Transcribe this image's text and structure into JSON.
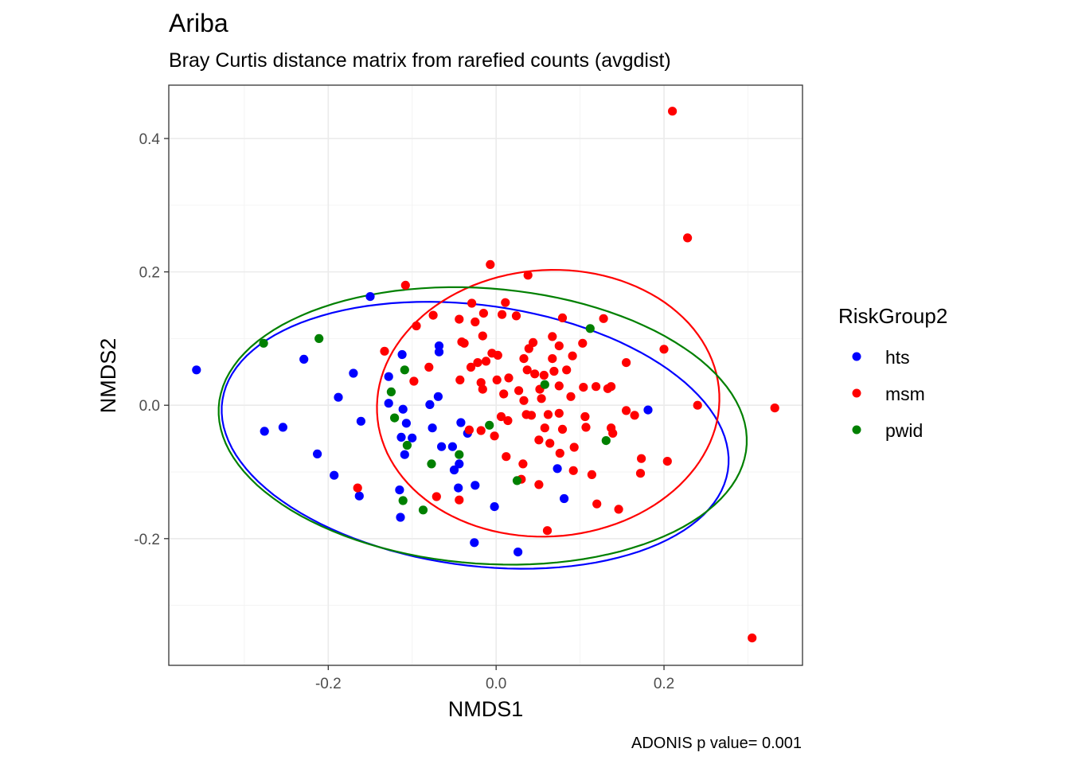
{
  "chart_data": {
    "type": "scatter",
    "title": "Ariba",
    "subtitle": "Bray Curtis distance matrix from rarefied counts (avgdist)",
    "xlabel": "NMDS1",
    "ylabel": "NMDS2",
    "caption": "ADONIS p value= 0.001",
    "xlim": [
      -0.39,
      0.365
    ],
    "ylim": [
      -0.39,
      0.48
    ],
    "x_ticks": [
      -0.2,
      0.0,
      0.2
    ],
    "x_tick_labels": [
      "-0.2",
      "0.0",
      "0.2"
    ],
    "y_ticks": [
      -0.2,
      0.0,
      0.2,
      0.4
    ],
    "y_tick_labels": [
      "-0.2",
      "0.0",
      "0.2",
      "0.4"
    ],
    "grid": true,
    "legend": {
      "title": "RiskGroup2",
      "placement": "right",
      "entries": [
        {
          "label": "hts",
          "color": "#0000ff"
        },
        {
          "label": "msm",
          "color": "#ff0000"
        },
        {
          "label": "pwid",
          "color": "#008000"
        }
      ]
    },
    "series": [
      {
        "name": "hts",
        "color": "#0000ff",
        "points": [
          [
            -0.357,
            0.053
          ],
          [
            -0.276,
            -0.039
          ],
          [
            -0.254,
            -0.033
          ],
          [
            -0.229,
            0.069
          ],
          [
            -0.213,
            -0.073
          ],
          [
            -0.193,
            -0.105
          ],
          [
            -0.188,
            0.012
          ],
          [
            -0.17,
            0.048
          ],
          [
            -0.163,
            -0.136
          ],
          [
            -0.161,
            -0.024
          ],
          [
            -0.15,
            0.163
          ],
          [
            -0.128,
            0.043
          ],
          [
            -0.128,
            0.003
          ],
          [
            -0.115,
            -0.127
          ],
          [
            -0.114,
            -0.168
          ],
          [
            -0.113,
            -0.048
          ],
          [
            -0.112,
            0.076
          ],
          [
            -0.111,
            -0.006
          ],
          [
            -0.109,
            -0.074
          ],
          [
            -0.107,
            -0.027
          ],
          [
            -0.1,
            -0.049
          ],
          [
            -0.079,
            0.001
          ],
          [
            -0.076,
            -0.034
          ],
          [
            -0.069,
            0.013
          ],
          [
            -0.068,
            0.089
          ],
          [
            -0.068,
            0.08
          ],
          [
            -0.065,
            -0.062
          ],
          [
            -0.052,
            -0.062
          ],
          [
            -0.05,
            -0.097
          ],
          [
            -0.045,
            -0.124
          ],
          [
            -0.044,
            -0.088
          ],
          [
            -0.042,
            -0.026
          ],
          [
            -0.034,
            -0.042
          ],
          [
            -0.026,
            -0.206
          ],
          [
            -0.025,
            -0.12
          ],
          [
            -0.002,
            -0.152
          ],
          [
            0.026,
            -0.22
          ],
          [
            0.073,
            -0.095
          ],
          [
            0.081,
            -0.14
          ],
          [
            0.181,
            -0.007
          ]
        ]
      },
      {
        "name": "msm",
        "color": "#ff0000",
        "points": [
          [
            0.21,
            0.441
          ],
          [
            0.228,
            0.251
          ],
          [
            -0.007,
            0.211
          ],
          [
            0.038,
            0.195
          ],
          [
            -0.108,
            0.18
          ],
          [
            -0.029,
            0.153
          ],
          [
            0.011,
            0.154
          ],
          [
            -0.075,
            0.135
          ],
          [
            -0.015,
            0.138
          ],
          [
            0.007,
            0.136
          ],
          [
            0.024,
            0.134
          ],
          [
            -0.044,
            0.129
          ],
          [
            -0.025,
            0.125
          ],
          [
            -0.095,
            0.119
          ],
          [
            0.079,
            0.131
          ],
          [
            0.128,
            0.13
          ],
          [
            0.067,
            0.103
          ],
          [
            -0.041,
            0.095
          ],
          [
            -0.016,
            0.104
          ],
          [
            -0.038,
            0.093
          ],
          [
            0.039,
            0.085
          ],
          [
            0.044,
            0.094
          ],
          [
            0.075,
            0.089
          ],
          [
            0.103,
            0.093
          ],
          [
            0.2,
            0.084
          ],
          [
            -0.133,
            0.081
          ],
          [
            -0.005,
            0.078
          ],
          [
            0.002,
            0.075
          ],
          [
            0.033,
            0.07
          ],
          [
            0.067,
            0.07
          ],
          [
            0.091,
            0.074
          ],
          [
            -0.03,
            0.057
          ],
          [
            -0.022,
            0.064
          ],
          [
            -0.012,
            0.066
          ],
          [
            0.037,
            0.053
          ],
          [
            0.046,
            0.047
          ],
          [
            0.069,
            0.051
          ],
          [
            0.084,
            0.053
          ],
          [
            0.155,
            0.064
          ],
          [
            -0.08,
            0.057
          ],
          [
            -0.098,
            0.036
          ],
          [
            -0.043,
            0.038
          ],
          [
            -0.018,
            0.034
          ],
          [
            0.001,
            0.038
          ],
          [
            0.015,
            0.041
          ],
          [
            0.057,
            0.045
          ],
          [
            0.009,
            0.017
          ],
          [
            -0.016,
            0.024
          ],
          [
            0.027,
            0.022
          ],
          [
            0.052,
            0.024
          ],
          [
            0.075,
            0.029
          ],
          [
            0.104,
            0.027
          ],
          [
            0.119,
            0.028
          ],
          [
            0.133,
            0.025
          ],
          [
            0.137,
            0.028
          ],
          [
            0.033,
            0.007
          ],
          [
            0.054,
            0.01
          ],
          [
            0.089,
            0.013
          ],
          [
            0.24,
            0.0
          ],
          [
            0.332,
            -0.004
          ],
          [
            0.006,
            -0.017
          ],
          [
            0.036,
            -0.014
          ],
          [
            0.042,
            -0.015
          ],
          [
            0.062,
            -0.014
          ],
          [
            0.075,
            -0.012
          ],
          [
            0.106,
            -0.017
          ],
          [
            0.155,
            -0.008
          ],
          [
            0.165,
            -0.015
          ],
          [
            -0.002,
            -0.046
          ],
          [
            0.014,
            -0.023
          ],
          [
            0.058,
            -0.034
          ],
          [
            0.079,
            -0.036
          ],
          [
            0.107,
            -0.033
          ],
          [
            0.139,
            -0.042
          ],
          [
            0.137,
            -0.034
          ],
          [
            -0.018,
            -0.038
          ],
          [
            0.051,
            -0.052
          ],
          [
            0.064,
            -0.057
          ],
          [
            0.076,
            -0.072
          ],
          [
            0.093,
            -0.063
          ],
          [
            -0.032,
            -0.037
          ],
          [
            0.012,
            -0.077
          ],
          [
            0.032,
            -0.088
          ],
          [
            0.173,
            -0.08
          ],
          [
            0.204,
            -0.084
          ],
          [
            0.03,
            -0.111
          ],
          [
            0.051,
            -0.119
          ],
          [
            0.092,
            -0.098
          ],
          [
            0.114,
            -0.104
          ],
          [
            0.172,
            -0.102
          ],
          [
            -0.071,
            -0.137
          ],
          [
            -0.044,
            -0.142
          ],
          [
            0.12,
            -0.148
          ],
          [
            0.146,
            -0.156
          ],
          [
            -0.165,
            -0.124
          ],
          [
            0.061,
            -0.188
          ],
          [
            0.305,
            -0.349
          ]
        ]
      },
      {
        "name": "pwid",
        "color": "#008000",
        "points": [
          [
            -0.277,
            0.093
          ],
          [
            -0.211,
            0.1
          ],
          [
            -0.125,
            0.02
          ],
          [
            -0.121,
            -0.019
          ],
          [
            -0.109,
            0.053
          ],
          [
            -0.106,
            -0.06
          ],
          [
            -0.111,
            -0.143
          ],
          [
            -0.087,
            -0.157
          ],
          [
            -0.077,
            -0.088
          ],
          [
            -0.044,
            -0.074
          ],
          [
            -0.008,
            -0.03
          ],
          [
            0.025,
            -0.113
          ],
          [
            0.058,
            0.031
          ],
          [
            0.112,
            0.115
          ],
          [
            0.131,
            -0.053
          ]
        ]
      }
    ],
    "ellipses": [
      {
        "name": "hts",
        "color": "#0000ff",
        "center": [
          -0.025,
          -0.045
        ],
        "semi_axes": [
          0.306,
          0.194
        ],
        "angle_deg": -12
      },
      {
        "name": "msm",
        "color": "#ff0000",
        "center": [
          0.062,
          0.003
        ],
        "semi_axes": [
          0.206,
          0.198
        ],
        "angle_deg": 30
      },
      {
        "name": "pwid",
        "color": "#008000",
        "center": [
          -0.016,
          -0.031
        ],
        "semi_axes": [
          0.316,
          0.206
        ],
        "angle_deg": -7
      }
    ]
  }
}
